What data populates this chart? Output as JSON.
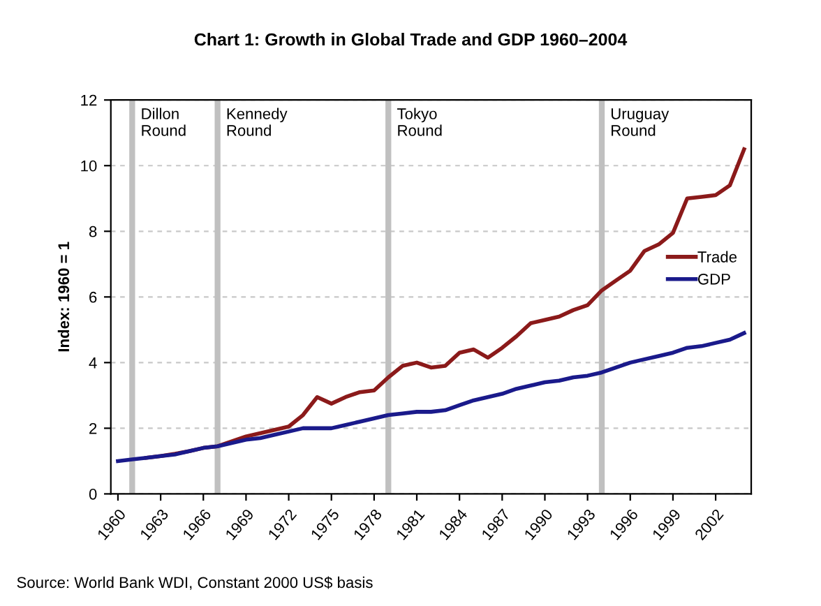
{
  "chart_data": {
    "type": "line",
    "title": "Chart 1: Growth in Global Trade and GDP 1960–2004",
    "ylabel": "Index: 1960 = 1",
    "x": [
      1960,
      1961,
      1962,
      1963,
      1964,
      1965,
      1966,
      1967,
      1968,
      1969,
      1970,
      1971,
      1972,
      1973,
      1974,
      1975,
      1976,
      1977,
      1978,
      1979,
      1980,
      1981,
      1982,
      1983,
      1984,
      1985,
      1986,
      1987,
      1988,
      1989,
      1990,
      1991,
      1992,
      1993,
      1994,
      1995,
      1996,
      1997,
      1998,
      1999,
      2000,
      2001,
      2002,
      2003,
      2004
    ],
    "series": [
      {
        "name": "Trade",
        "color": "#8b1a1a",
        "values": [
          null,
          null,
          1.1,
          1.15,
          1.22,
          1.3,
          1.4,
          1.45,
          1.6,
          1.75,
          1.85,
          1.95,
          2.05,
          2.4,
          2.95,
          2.75,
          2.95,
          3.1,
          3.15,
          3.55,
          3.9,
          4.0,
          3.85,
          3.9,
          4.3,
          4.4,
          4.15,
          4.45,
          4.8,
          5.2,
          5.3,
          5.4,
          5.6,
          5.75,
          6.2,
          6.5,
          6.8,
          7.4,
          7.6,
          7.95,
          9.0,
          9.05,
          9.1,
          9.4,
          10.5
        ]
      },
      {
        "name": "GDP",
        "color": "#1a1a8b",
        "values": [
          1.0,
          1.05,
          1.1,
          1.15,
          1.2,
          1.3,
          1.4,
          1.45,
          1.55,
          1.65,
          1.7,
          1.8,
          1.9,
          2.0,
          2.0,
          2.0,
          2.1,
          2.2,
          2.3,
          2.4,
          2.45,
          2.5,
          2.5,
          2.55,
          2.7,
          2.85,
          2.95,
          3.05,
          3.2,
          3.3,
          3.4,
          3.45,
          3.55,
          3.6,
          3.7,
          3.85,
          4.0,
          4.1,
          4.2,
          4.3,
          4.45,
          4.5,
          4.6,
          4.7,
          4.9
        ]
      }
    ],
    "xlim": [
      1959.5,
      2004.5
    ],
    "xticks": [
      1960,
      1963,
      1966,
      1969,
      1972,
      1975,
      1978,
      1981,
      1984,
      1987,
      1990,
      1993,
      1996,
      1999,
      2002
    ],
    "ylim": [
      0,
      12
    ],
    "yticks": [
      0,
      2,
      4,
      6,
      8,
      10,
      12
    ],
    "grid": "y",
    "legend": "right",
    "marker": "none",
    "line_style": "solid",
    "ref_lines": [
      {
        "axis": "x",
        "value": 1961,
        "label": "Dillon\nRound",
        "color": "#c0c0c0"
      },
      {
        "axis": "x",
        "value": 1967,
        "label": "Kennedy\nRound",
        "color": "#c0c0c0"
      },
      {
        "axis": "x",
        "value": 1979,
        "label": "Tokyo\nRound",
        "color": "#c0c0c0"
      },
      {
        "axis": "x",
        "value": 1994,
        "label": "Uruguay\nRound",
        "color": "#c0c0c0"
      }
    ],
    "annotations": [
      "Source: World Bank WDI, Constant 2000 US$ basis"
    ]
  }
}
